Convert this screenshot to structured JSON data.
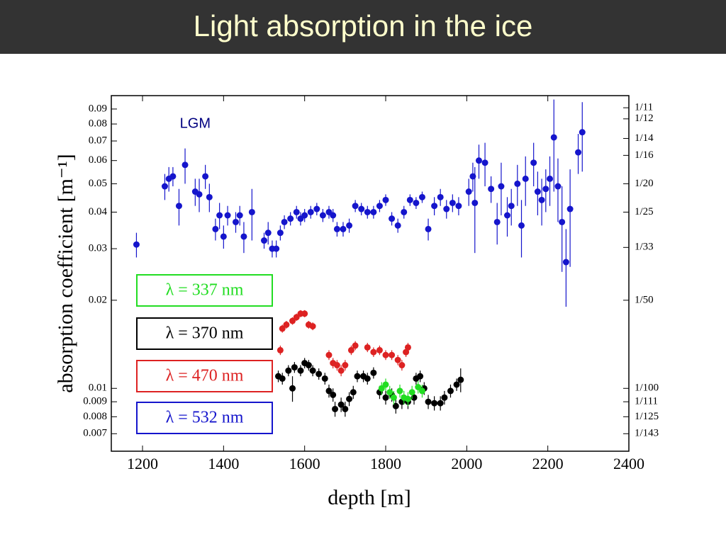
{
  "header": {
    "title": "Light absorption in the ice"
  },
  "chart_data": {
    "type": "scatter",
    "xlabel": "depth [m]",
    "ylabel": "absorption coefficient [m⁻¹]",
    "xlim": [
      1123,
      2400
    ],
    "xticks": [
      1200,
      1400,
      1600,
      1800,
      2000,
      2200,
      2400
    ],
    "ylim": [
      0.0061,
      0.1
    ],
    "log_y": true,
    "yticks": [
      0.007,
      0.008,
      0.009,
      0.01,
      0.02,
      0.03,
      0.04,
      0.05,
      0.06,
      0.07,
      0.08,
      0.09
    ],
    "y2lim": [
      0.0061,
      0.1
    ],
    "y2ticks": [
      {
        "value": 0.0909,
        "label": "1/11"
      },
      {
        "value": 0.0833,
        "label": "1/12"
      },
      {
        "value": 0.0714,
        "label": "1/14"
      },
      {
        "value": 0.0625,
        "label": "1/16"
      },
      {
        "value": 0.05,
        "label": "1/20"
      },
      {
        "value": 0.04,
        "label": "1/25"
      },
      {
        "value": 0.0303,
        "label": "1/33"
      },
      {
        "value": 0.02,
        "label": "1/50"
      },
      {
        "value": 0.01,
        "label": "1/100"
      },
      {
        "value": 0.009,
        "label": "1/111"
      },
      {
        "value": 0.008,
        "label": "1/125"
      },
      {
        "value": 0.007,
        "label": "1/143"
      }
    ],
    "legend": "lower-left",
    "annotations": [
      {
        "text": "LGM",
        "x": 1330,
        "y": 0.08
      }
    ],
    "series": [
      {
        "name": "λ = 337 nm",
        "color": "#22dd22",
        "x": [
          1790,
          1800,
          1810,
          1820,
          1835,
          1845,
          1855,
          1865,
          1880,
          1890
        ],
        "values": [
          0.01,
          0.0103,
          0.0097,
          0.0093,
          0.0098,
          0.0093,
          0.0092,
          0.0097,
          0.0101,
          0.0098
        ],
        "errors": [
          0.0005,
          0.0005,
          0.0005,
          0.0005,
          0.0005,
          0.0005,
          0.0005,
          0.0005,
          0.0005,
          0.0005
        ]
      },
      {
        "name": "λ = 370 nm",
        "color": "#000000",
        "x": [
          1535,
          1545,
          1560,
          1570,
          1575,
          1590,
          1600,
          1610,
          1620,
          1635,
          1650,
          1660,
          1670,
          1675,
          1690,
          1700,
          1710,
          1720,
          1730,
          1745,
          1755,
          1770,
          1785,
          1800,
          1815,
          1825,
          1840,
          1855,
          1870,
          1875,
          1885,
          1895,
          1905,
          1920,
          1935,
          1945,
          1960,
          1975,
          1985
        ],
        "values": [
          0.011,
          0.0108,
          0.0115,
          0.01,
          0.0118,
          0.0115,
          0.0122,
          0.012,
          0.0115,
          0.0112,
          0.0108,
          0.0098,
          0.0095,
          0.0085,
          0.0088,
          0.0085,
          0.0092,
          0.0097,
          0.011,
          0.011,
          0.0108,
          0.0113,
          0.0097,
          0.0093,
          0.0095,
          0.0087,
          0.009,
          0.009,
          0.0093,
          0.0108,
          0.011,
          0.01,
          0.009,
          0.0089,
          0.0089,
          0.0093,
          0.0098,
          0.0103,
          0.0107
        ],
        "errors": [
          0.0005,
          0.0005,
          0.0005,
          0.001,
          0.0005,
          0.0005,
          0.0005,
          0.0005,
          0.0005,
          0.0005,
          0.0005,
          0.0005,
          0.0005,
          0.0005,
          0.0005,
          0.0005,
          0.0005,
          0.0005,
          0.0005,
          0.0005,
          0.0005,
          0.0005,
          0.0005,
          0.0005,
          0.0005,
          0.0005,
          0.0005,
          0.0005,
          0.0005,
          0.0005,
          0.0005,
          0.0005,
          0.0005,
          0.0005,
          0.0005,
          0.0005,
          0.0005,
          0.0005,
          0.001
        ]
      },
      {
        "name": "λ = 470 nm",
        "color": "#dd2222",
        "x": [
          1540,
          1545,
          1555,
          1570,
          1580,
          1590,
          1600,
          1610,
          1620,
          1660,
          1670,
          1680,
          1690,
          1700,
          1715,
          1725,
          1755,
          1770,
          1785,
          1800,
          1815,
          1830,
          1840,
          1850,
          1855
        ],
        "values": [
          0.0135,
          0.016,
          0.0165,
          0.017,
          0.0175,
          0.018,
          0.018,
          0.0165,
          0.0163,
          0.013,
          0.0122,
          0.012,
          0.0115,
          0.012,
          0.0135,
          0.014,
          0.0138,
          0.0133,
          0.0135,
          0.013,
          0.013,
          0.0125,
          0.012,
          0.0133,
          0.0138
        ],
        "errors": [
          0.0005,
          0.0005,
          0.0005,
          0.0005,
          0.0005,
          0.0005,
          0.0005,
          0.0005,
          0.0005,
          0.0005,
          0.0005,
          0.0005,
          0.0005,
          0.0005,
          0.0005,
          0.0005,
          0.0005,
          0.0005,
          0.0005,
          0.0005,
          0.0005,
          0.0005,
          0.0005,
          0.0005,
          0.0005
        ]
      },
      {
        "name": "λ = 532 nm",
        "color": "#1515cc",
        "x": [
          1185,
          1255,
          1265,
          1275,
          1290,
          1305,
          1330,
          1340,
          1355,
          1365,
          1380,
          1390,
          1400,
          1410,
          1430,
          1440,
          1450,
          1470,
          1500,
          1510,
          1520,
          1530,
          1540,
          1550,
          1565,
          1580,
          1590,
          1600,
          1615,
          1630,
          1645,
          1660,
          1670,
          1680,
          1695,
          1710,
          1725,
          1740,
          1755,
          1770,
          1785,
          1800,
          1815,
          1830,
          1845,
          1860,
          1875,
          1890,
          1905,
          1920,
          1935,
          1950,
          1965,
          1980,
          2005,
          2015,
          2020,
          2030,
          2045,
          2060,
          2075,
          2085,
          2100,
          2110,
          2125,
          2135,
          2145,
          2165,
          2175,
          2185,
          2195,
          2205,
          2215,
          2225,
          2235,
          2245,
          2255,
          2275,
          2285
        ],
        "values": [
          0.031,
          0.049,
          0.052,
          0.053,
          0.042,
          0.058,
          0.047,
          0.046,
          0.053,
          0.045,
          0.035,
          0.039,
          0.033,
          0.039,
          0.037,
          0.039,
          0.033,
          0.04,
          0.032,
          0.034,
          0.03,
          0.03,
          0.034,
          0.037,
          0.038,
          0.04,
          0.038,
          0.039,
          0.04,
          0.041,
          0.039,
          0.04,
          0.039,
          0.035,
          0.035,
          0.036,
          0.042,
          0.041,
          0.04,
          0.04,
          0.042,
          0.044,
          0.038,
          0.036,
          0.04,
          0.044,
          0.043,
          0.045,
          0.035,
          0.042,
          0.045,
          0.041,
          0.043,
          0.042,
          0.047,
          0.053,
          0.043,
          0.06,
          0.059,
          0.048,
          0.037,
          0.049,
          0.039,
          0.042,
          0.05,
          0.036,
          0.052,
          0.059,
          0.047,
          0.044,
          0.048,
          0.052,
          0.072,
          0.049,
          0.037,
          0.027,
          0.041,
          0.064,
          0.075
        ],
        "errors": [
          0.003,
          0.005,
          0.005,
          0.004,
          0.006,
          0.008,
          0.005,
          0.006,
          0.005,
          0.005,
          0.003,
          0.004,
          0.003,
          0.003,
          0.003,
          0.003,
          0.004,
          0.008,
          0.002,
          0.003,
          0.002,
          0.002,
          0.002,
          0.002,
          0.002,
          0.002,
          0.002,
          0.002,
          0.002,
          0.002,
          0.002,
          0.002,
          0.002,
          0.002,
          0.002,
          0.002,
          0.002,
          0.002,
          0.002,
          0.002,
          0.002,
          0.002,
          0.002,
          0.002,
          0.002,
          0.002,
          0.002,
          0.002,
          0.003,
          0.003,
          0.003,
          0.003,
          0.003,
          0.003,
          0.005,
          0.006,
          0.014,
          0.008,
          0.01,
          0.005,
          0.006,
          0.01,
          0.006,
          0.006,
          0.008,
          0.008,
          0.01,
          0.01,
          0.008,
          0.008,
          0.008,
          0.01,
          0.025,
          0.012,
          0.012,
          0.008,
          0.015,
          0.01,
          0.02
        ]
      }
    ]
  }
}
